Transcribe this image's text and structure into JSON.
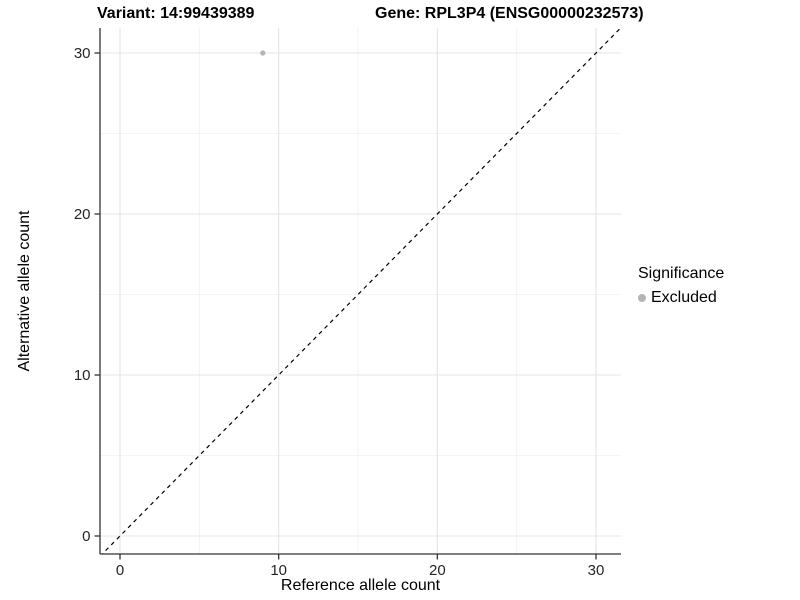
{
  "titles": {
    "variant": "Variant: 14:99439389",
    "gene": "Gene: RPL3P4 (ENSG00000232573)"
  },
  "chart_data": {
    "type": "scatter",
    "title": "Variant: 14:99439389 | Gene: RPL3P4 (ENSG00000232573)",
    "xlabel": "Reference allele count",
    "ylabel": "Alternative allele count",
    "xlim": [
      -1.5,
      31.5
    ],
    "ylim": [
      -1.5,
      31.5
    ],
    "x_ticks": [
      0,
      10,
      20,
      30
    ],
    "y_ticks": [
      0,
      10,
      20,
      30
    ],
    "x_minor_ticks": [
      5,
      15,
      25
    ],
    "y_minor_ticks": [
      5,
      15,
      25
    ],
    "grid": "major+minor",
    "points": [
      {
        "x": 9,
        "y": 30,
        "series": "Excluded"
      }
    ],
    "reference_line": {
      "slope": 1,
      "intercept": 0,
      "style": "dashed"
    },
    "legend": {
      "title": "Significance",
      "position": "right",
      "items": [
        {
          "label": "Excluded",
          "color": "#b4b4b4"
        }
      ]
    },
    "colors": {
      "point": "#b4b4b4",
      "grid_major": "#e4e4e4",
      "grid_minor": "#f1f1f1",
      "axis": "#333333",
      "tick_label": "#262626",
      "reference_line": "#000000",
      "background": "#ffffff"
    }
  }
}
